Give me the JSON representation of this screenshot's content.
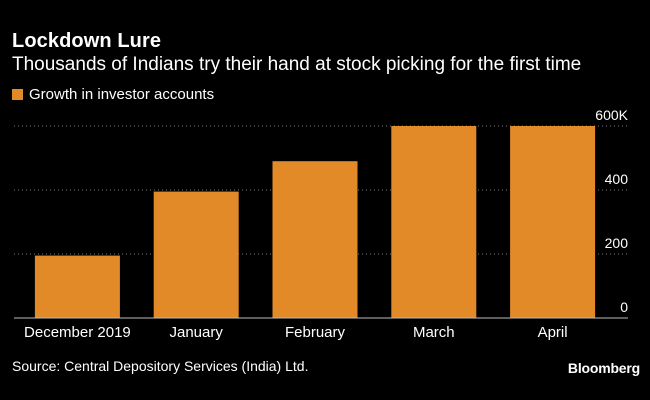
{
  "header": {
    "title": "Lockdown Lure",
    "subtitle": "Thousands of Indians try their hand at stock picking for the first time"
  },
  "footer": {
    "source": "Source: Central Depository Services (India) Ltd.",
    "brand": "Bloomberg"
  },
  "colors": {
    "background": "#000000",
    "bar": "#E38A28",
    "text": "#ffffff",
    "grid": "#777777"
  },
  "chart_data": {
    "type": "bar",
    "title": "Lockdown Lure",
    "subtitle": "Thousands of Indians try their hand at stock picking for the first time",
    "legend": [
      {
        "name": "Growth in investor accounts",
        "color": "#E38A28"
      }
    ],
    "legend_position": "top-left",
    "categories": [
      "December 2019",
      "January",
      "February",
      "March",
      "April"
    ],
    "series": [
      {
        "name": "Growth in investor accounts",
        "values": [
          195,
          395,
          490,
          600,
          600
        ]
      }
    ],
    "yticks": [
      {
        "value": 0,
        "label": "0"
      },
      {
        "value": 200,
        "label": "200"
      },
      {
        "value": 400,
        "label": "400"
      },
      {
        "value": 600,
        "label": "600K"
      }
    ],
    "ylim": [
      0,
      600
    ],
    "y_axis_side": "right",
    "grid": true,
    "xlabel": "",
    "ylabel": ""
  }
}
